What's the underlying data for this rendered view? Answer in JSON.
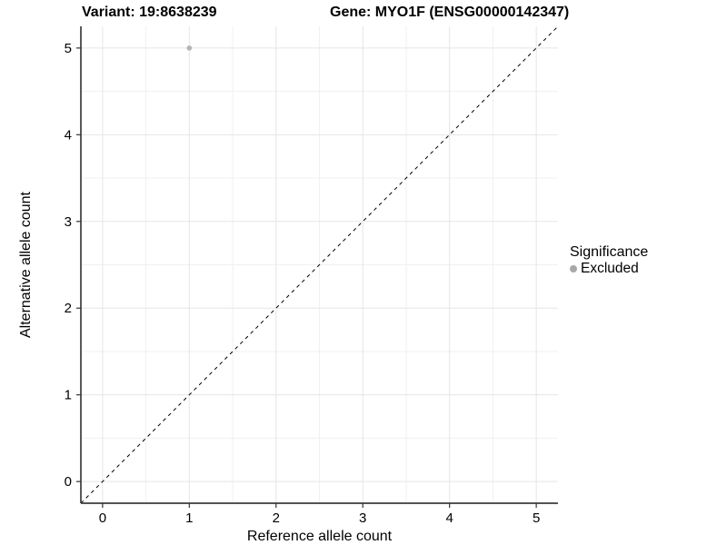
{
  "chart_data": {
    "type": "scatter",
    "title_left": "Variant: 19:8638239",
    "title_right": "Gene: MYO1F (ENSG00000142347)",
    "xlabel": "Reference allele count",
    "ylabel": "Alternative allele count",
    "xlim": [
      -0.25,
      5.25
    ],
    "ylim": [
      -0.25,
      5.25
    ],
    "x_ticks": [
      0,
      1,
      2,
      3,
      4,
      5
    ],
    "y_ticks": [
      0,
      1,
      2,
      3,
      4,
      5
    ],
    "minor_gridlines": [
      0.5,
      1.5,
      2.5,
      3.5,
      4.5
    ],
    "grid": true,
    "points": [
      {
        "x": 1,
        "y": 5,
        "series": "Excluded"
      }
    ],
    "reference_line": {
      "slope": 1,
      "intercept": 0,
      "style": "dashed",
      "color": "#000000"
    },
    "legend": {
      "title": "Significance",
      "position": "right",
      "entries": [
        {
          "label": "Excluded",
          "color": "#a8a8a8",
          "marker": "circle"
        }
      ]
    },
    "colors": {
      "background": "#ffffff",
      "grid_major": "#e5e5e5",
      "grid_minor": "#f0f0f0",
      "axis_line": "#3c3c3c",
      "tick_mark": "#333333",
      "point": "#b3b3b3"
    }
  }
}
